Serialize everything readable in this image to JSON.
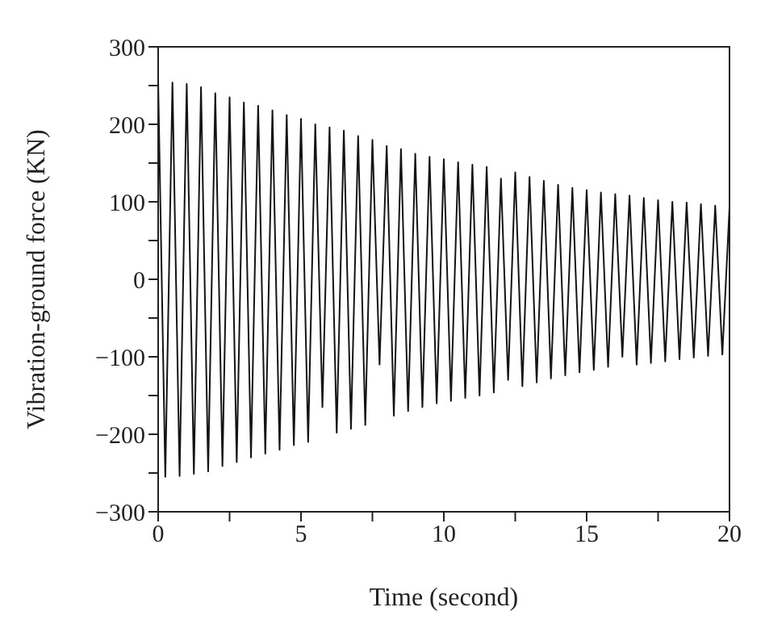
{
  "chart_data": {
    "type": "line",
    "xlabel": "Time (second)",
    "ylabel": "Vibration-ground force (KN)",
    "xlim": [
      0,
      20
    ],
    "ylim": [
      -300,
      300
    ],
    "xticks": [
      0,
      {
        "value": 2.5,
        "label": null
      },
      5,
      {
        "value": 7.5,
        "label": null
      },
      10,
      {
        "value": 12.5,
        "label": null
      },
      15,
      {
        "value": 17.5,
        "label": null
      },
      20
    ],
    "yticks": [
      -300,
      {
        "value": -250,
        "label": null
      },
      -200,
      {
        "value": -150,
        "label": null
      },
      -100,
      {
        "value": -50,
        "label": null
      },
      0,
      {
        "value": 50,
        "label": null
      },
      100,
      {
        "value": 150,
        "label": null
      },
      200,
      {
        "value": 250,
        "label": null
      },
      300
    ],
    "grid": false,
    "legend": false,
    "marker": "none",
    "line_style": "solid",
    "series": [
      {
        "color": "#141414",
        "x": [
          0,
          0.25,
          0.5,
          0.75,
          1,
          1.25,
          1.5,
          1.75,
          2,
          2.25,
          2.5,
          2.75,
          3,
          3.25,
          3.5,
          3.75,
          4,
          4.25,
          4.5,
          4.75,
          5,
          5.25,
          5.5,
          5.75,
          6,
          6.25,
          6.5,
          6.75,
          7,
          7.25,
          7.5,
          7.75,
          8,
          8.25,
          8.5,
          8.75,
          9,
          9.25,
          9.5,
          9.75,
          10,
          10.25,
          10.5,
          10.75,
          11,
          11.25,
          11.5,
          11.75,
          12,
          12.25,
          12.5,
          12.75,
          13,
          13.25,
          13.5,
          13.75,
          14,
          14.25,
          14.5,
          14.75,
          15,
          15.25,
          15.5,
          15.75,
          16,
          16.25,
          16.5,
          16.75,
          17,
          17.25,
          17.5,
          17.75,
          18,
          18.25,
          18.5,
          18.75,
          19,
          19.25,
          19.5,
          19.75,
          20
        ],
        "values": [
          255,
          -255,
          254,
          -254,
          252,
          -251,
          248,
          -248,
          240,
          -241,
          235,
          -236,
          228,
          -230,
          224,
          -225,
          218,
          -220,
          212,
          -214,
          207,
          -210,
          200,
          -165,
          196,
          -198,
          192,
          -193,
          185,
          -188,
          180,
          -110,
          172,
          -176,
          168,
          -170,
          162,
          -165,
          158,
          -160,
          155,
          -157,
          151,
          -153,
          148,
          -150,
          145,
          -146,
          130,
          -130,
          138,
          -138,
          132,
          -133,
          127,
          -128,
          122,
          -124,
          118,
          -120,
          115,
          -117,
          112,
          -113,
          110,
          -100,
          108,
          -110,
          105,
          -108,
          102,
          -106,
          100,
          -103,
          99,
          -101,
          97,
          -99,
          95,
          -97,
          93
        ]
      }
    ]
  }
}
